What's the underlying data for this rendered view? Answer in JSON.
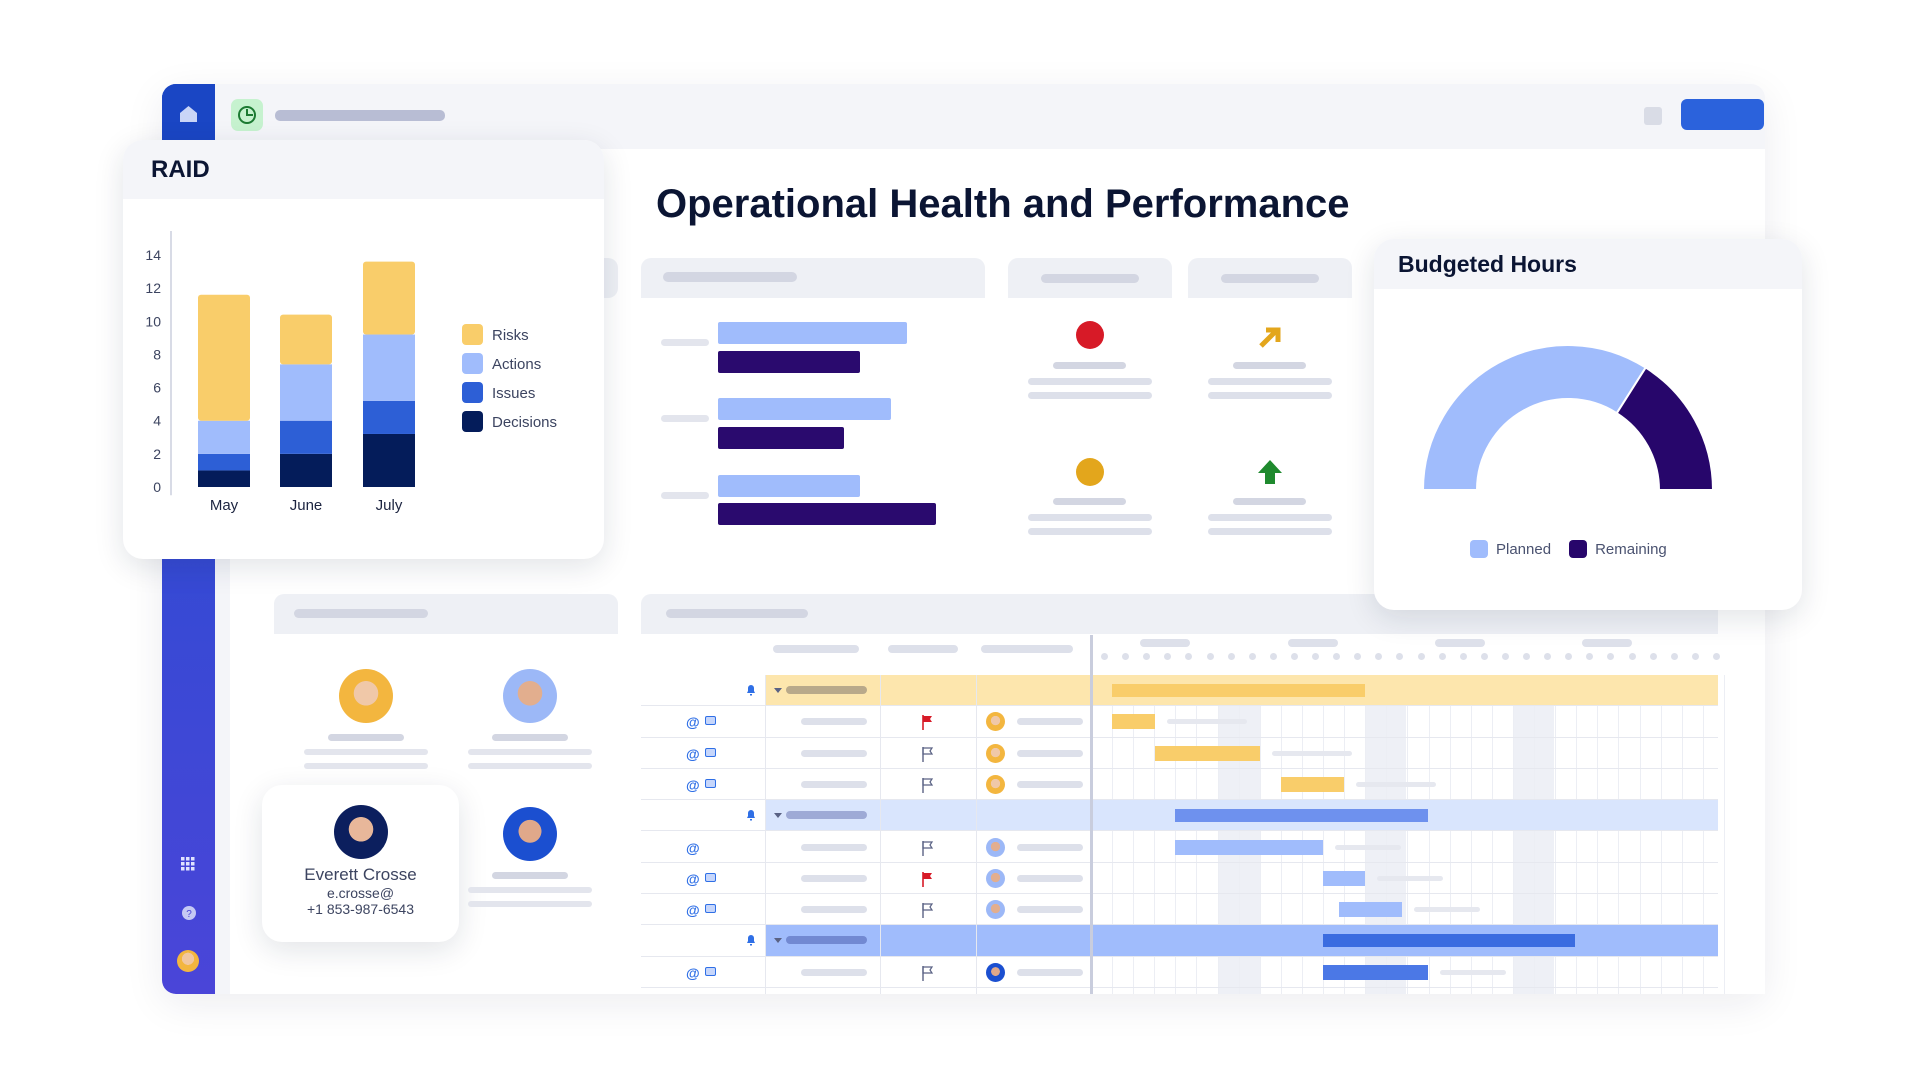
{
  "page": {
    "title": "Operational Health and Performance"
  },
  "raid": {
    "title": "RAID"
  },
  "budget": {
    "title": "Budgeted Hours",
    "gauge": {
      "type": "pie",
      "style": "half-donut",
      "slices": [
        {
          "name": "Planned",
          "value": 68,
          "color": "#a0bcfc"
        },
        {
          "name": "Remaining",
          "value": 32,
          "color": "#27066b"
        }
      ]
    }
  },
  "contact": {
    "name": "Everett Crosse",
    "email": "e.crosse@",
    "phone": "+1 853-987-6543"
  },
  "gantt": {
    "rows": [
      {
        "type": "group",
        "color": "yellow"
      },
      {
        "type": "task",
        "flag": "red",
        "comment": true,
        "avatar": "woman"
      },
      {
        "type": "task",
        "flag": "outline",
        "comment": true,
        "avatar": "woman"
      },
      {
        "type": "task",
        "flag": "outline",
        "comment": true,
        "avatar": "woman"
      },
      {
        "type": "group",
        "color": "lightblue"
      },
      {
        "type": "task",
        "flag": "outline",
        "comment": false,
        "avatar": "man"
      },
      {
        "type": "task",
        "flag": "red",
        "comment": true,
        "avatar": "man"
      },
      {
        "type": "task",
        "flag": "outline",
        "comment": true,
        "avatar": "man"
      },
      {
        "type": "group",
        "color": "blue"
      },
      {
        "type": "task",
        "flag": "outline",
        "comment": true,
        "avatar": "man2"
      }
    ]
  },
  "icons": {
    "home": "home-icon",
    "clock": "clock-icon",
    "apps": "grid-icon",
    "help": "help-icon",
    "bell": "bell-icon",
    "attach": "paperclip-icon",
    "comment": "comment-icon",
    "flag": "flag-icon"
  },
  "colors": {
    "accent": "#2b62dc",
    "risks": "#f9cd6a",
    "actions": "#a0bcfc",
    "issues": "#2d5fd6",
    "decisions": "#041c5a",
    "red_status": "#d71a27",
    "amber_status": "#e3a61c",
    "green_status": "#1f8a2e"
  },
  "chart_data": {
    "type": "bar",
    "stacked": true,
    "title": "RAID",
    "categories": [
      "May",
      "June",
      "July"
    ],
    "series": [
      {
        "name": "Decisions",
        "values": [
          1,
          2,
          3.2
        ],
        "color": "#041c5a"
      },
      {
        "name": "Issues",
        "values": [
          1,
          2,
          2
        ],
        "color": "#2d5fd6"
      },
      {
        "name": "Actions",
        "values": [
          2,
          3.4,
          4
        ],
        "color": "#a0bcfc"
      },
      {
        "name": "Risks",
        "values": [
          7.6,
          3,
          4.4
        ],
        "color": "#f9cd6a"
      }
    ],
    "legend_order": [
      "Risks",
      "Actions",
      "Issues",
      "Decisions"
    ],
    "yticks": [
      0,
      2,
      4,
      6,
      8,
      10,
      12,
      14
    ],
    "ylim": [
      0,
      14
    ],
    "legend": "right",
    "grid": false
  }
}
